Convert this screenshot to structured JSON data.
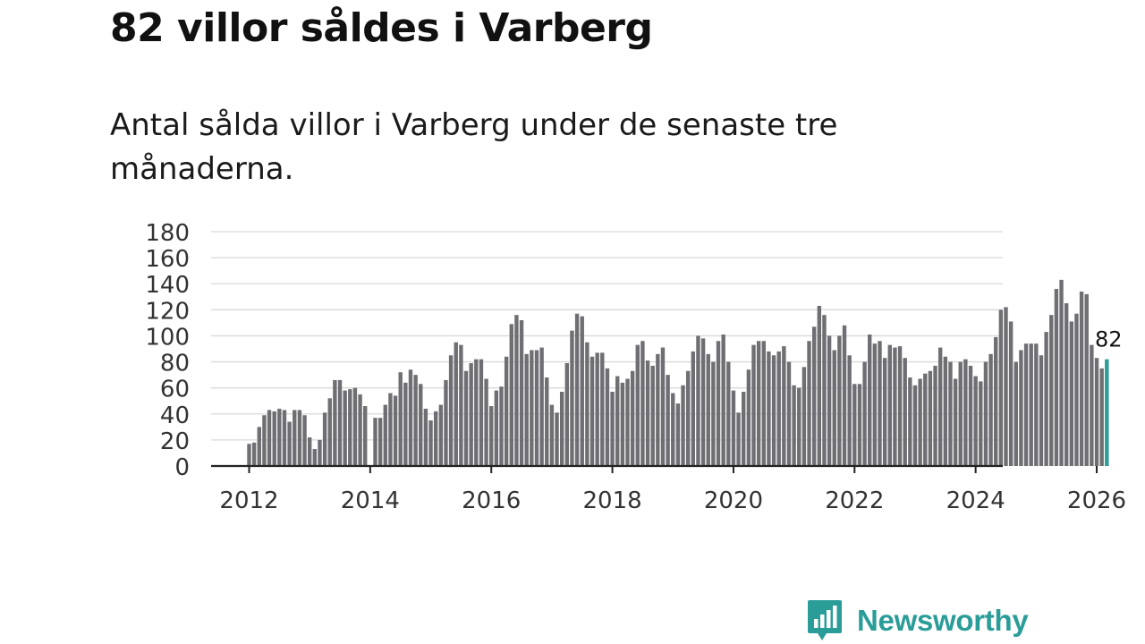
{
  "title": "82 villor såldes i Varberg",
  "subtitle": "Antal sålda villor i Varberg under de senaste tre månaderna.",
  "brand": {
    "name": "Newsworthy",
    "color": "#2a9d98"
  },
  "chart_data": {
    "type": "bar",
    "title": "82 villor såldes i Varberg",
    "xlabel": "",
    "ylabel": "",
    "ylim": [
      0,
      180
    ],
    "yticks": [
      0,
      20,
      40,
      60,
      80,
      100,
      120,
      140,
      160,
      180
    ],
    "xticks": [
      "2012",
      "2014",
      "2016",
      "2018",
      "2020",
      "2022",
      "2024",
      "2026"
    ],
    "grid": true,
    "start": "2012-01",
    "bar_color": "#6f6e73",
    "highlight_color": "#2a9d98",
    "highlight_label": "82",
    "values": [
      17,
      18,
      30,
      39,
      43,
      42,
      44,
      43,
      34,
      43,
      43,
      39,
      22,
      13,
      20,
      41,
      52,
      66,
      66,
      58,
      59,
      60,
      55,
      46,
      null,
      37,
      37,
      47,
      56,
      54,
      72,
      64,
      74,
      70,
      63,
      44,
      35,
      42,
      47,
      66,
      85,
      95,
      93,
      73,
      79,
      82,
      82,
      67,
      46,
      58,
      61,
      84,
      109,
      116,
      112,
      86,
      89,
      89,
      91,
      68,
      47,
      41,
      57,
      79,
      104,
      117,
      115,
      95,
      84,
      87,
      87,
      75,
      57,
      69,
      64,
      67,
      73,
      93,
      96,
      81,
      77,
      86,
      91,
      70,
      56,
      48,
      62,
      73,
      88,
      100,
      98,
      86,
      80,
      96,
      101,
      80,
      58,
      41,
      57,
      74,
      93,
      96,
      96,
      88,
      85,
      88,
      92,
      80,
      62,
      60,
      76,
      96,
      107,
      123,
      116,
      100,
      89,
      100,
      108,
      85,
      63,
      63,
      80,
      101,
      94,
      96,
      83,
      93,
      91,
      92,
      83,
      68,
      62,
      67,
      71,
      73,
      77,
      91,
      84,
      80,
      67,
      80,
      82,
      77,
      69,
      65,
      80,
      86,
      99,
      120,
      122,
      111,
      80,
      89,
      94,
      94,
      94,
      85,
      103,
      116,
      136,
      143,
      125,
      111,
      117,
      134,
      132,
      93,
      83,
      75,
      82
    ]
  }
}
